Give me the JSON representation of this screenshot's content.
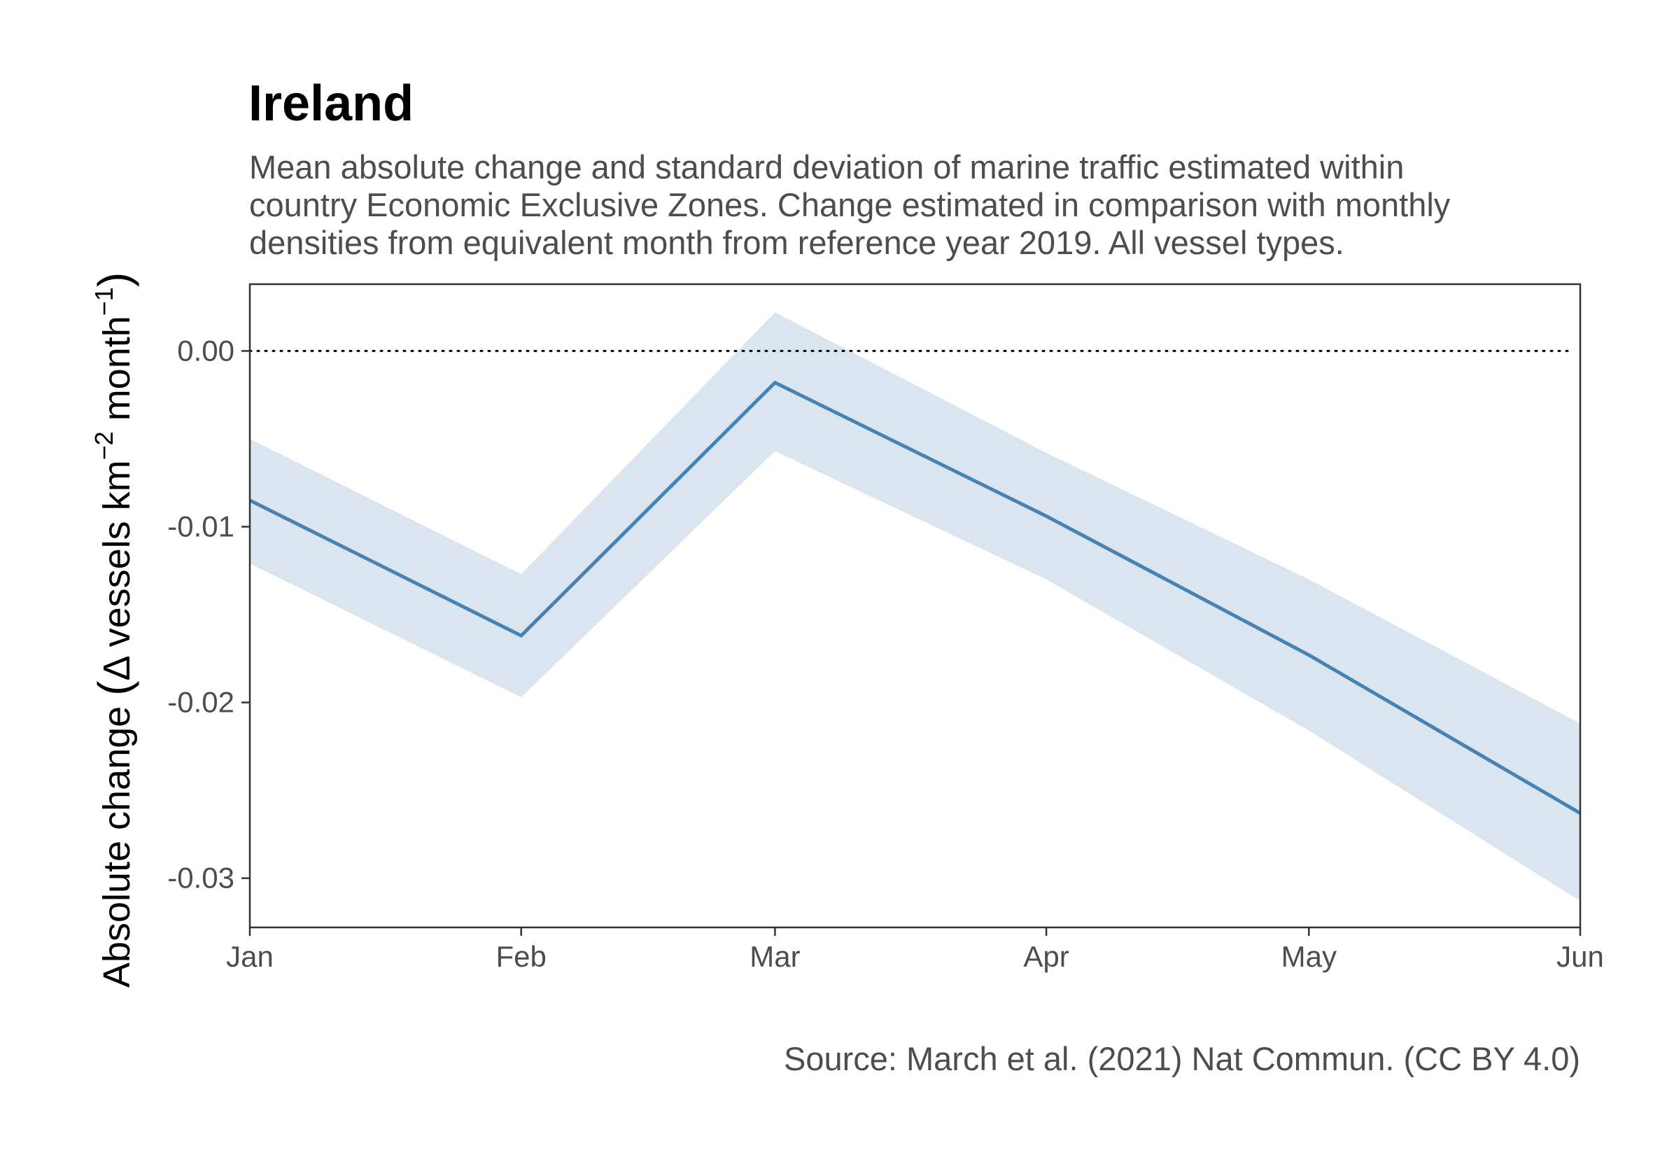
{
  "chart_data": {
    "type": "line",
    "title": "Ireland",
    "subtitle_lines": [
      "Mean absolute change and standard deviation of marine traffic estimated within",
      "country Economic Exclusive Zones. Change estimated in comparison with monthly",
      "densities from equivalent month from reference year 2019. All vessel types."
    ],
    "caption": "Source: March et al. (2021) Nat Commun. (CC BY 4.0)",
    "ylabel": {
      "prefix": "Absolute change",
      "open_paren": "(",
      "delta": "Δ",
      "vessels_km": " vessels km",
      "km_exp": "−2",
      "month": " month",
      "month_exp": "−1",
      "close_paren": ")"
    },
    "xlabel": "",
    "categories": [
      "Jan",
      "Feb",
      "Mar",
      "Apr",
      "May",
      "Jun"
    ],
    "x": [
      0,
      31,
      60,
      91,
      121,
      152
    ],
    "series": [
      {
        "mean": [
          -0.0085,
          -0.0162,
          -0.0018,
          -0.0094,
          -0.0173,
          -0.0263
        ],
        "lower": [
          -0.0121,
          -0.0197,
          -0.0057,
          -0.013,
          -0.0216,
          -0.0313
        ],
        "upper": [
          -0.005,
          -0.0127,
          0.0022,
          -0.0058,
          -0.013,
          -0.0212
        ]
      }
    ],
    "reference_line": {
      "y": 0,
      "style": "dotted"
    },
    "yticks": [
      0,
      -0.01,
      -0.02,
      -0.03
    ],
    "ytick_labels": [
      "0.00",
      "-0.01",
      "-0.02",
      "-0.03"
    ],
    "ylim": [
      -0.0328,
      0.0038
    ],
    "colors": {
      "line": "#4682b4",
      "band": "#dae5f0",
      "reference": "#000000",
      "axis": "#333333"
    },
    "grid": false,
    "legend": "none"
  }
}
